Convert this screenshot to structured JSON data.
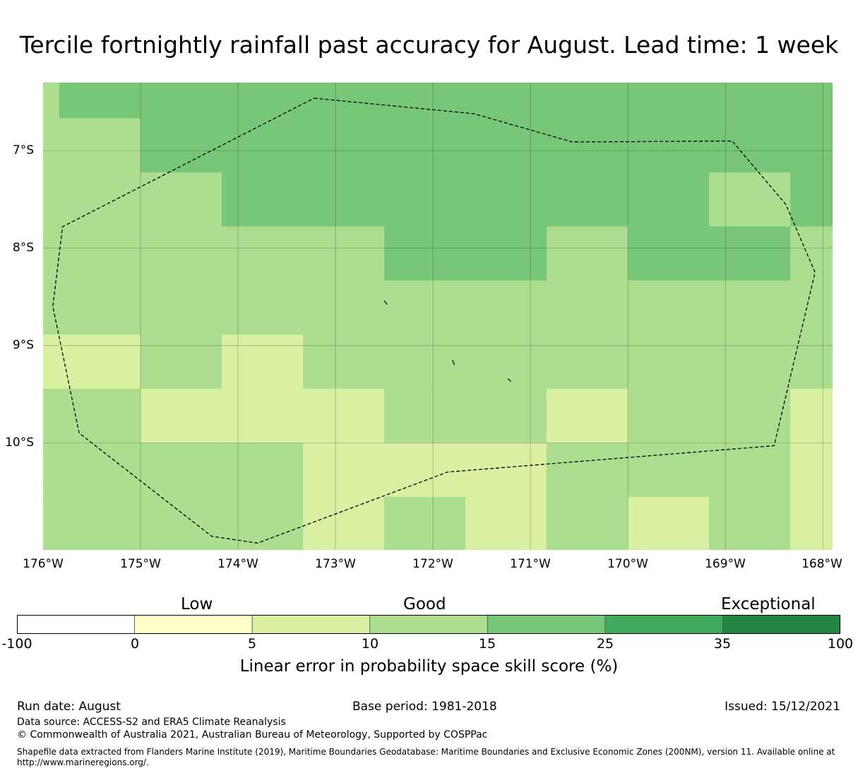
{
  "title": "Tercile fortnightly rainfall past accuracy for August. Lead time: 1 week",
  "map": {
    "lon_range": [
      -176,
      -167.9
    ],
    "lat_range": [
      -6.3,
      -11.1
    ],
    "grid_lon": [
      -175,
      -174,
      -173,
      -172,
      -171,
      -170,
      -169,
      -168
    ],
    "grid_lat": [
      -7,
      -8,
      -9,
      -10
    ],
    "lat_labels": [
      "7°S",
      "8°S",
      "9°S",
      "10°S"
    ],
    "lon_labels": [
      "176°W",
      "175°W",
      "174°W",
      "173°W",
      "172°W",
      "171°W",
      "170°W",
      "169°W",
      "168°W"
    ],
    "lon_edges": [
      -176,
      -175.833,
      -175,
      -174.167,
      -173.333,
      -172.5,
      -171.667,
      -170.833,
      -170,
      -169.167,
      -168.333,
      -167.9
    ],
    "lat_edges": [
      -6.3,
      -6.667,
      -7.222,
      -7.778,
      -8.333,
      -8.889,
      -9.444,
      -10,
      -10.556,
      -11.1
    ],
    "cells": [
      [
        3,
        4,
        4,
        4,
        4,
        4,
        4,
        4,
        4,
        4,
        4
      ],
      [
        3,
        3,
        4,
        4,
        4,
        4,
        4,
        4,
        4,
        4,
        4
      ],
      [
        3,
        3,
        3,
        4,
        4,
        4,
        4,
        4,
        4,
        3,
        4
      ],
      [
        3,
        3,
        3,
        3,
        3,
        4,
        4,
        3,
        4,
        4,
        3
      ],
      [
        3,
        3,
        3,
        3,
        3,
        3,
        3,
        3,
        3,
        3,
        3
      ],
      [
        2,
        2,
        3,
        2,
        3,
        3,
        3,
        3,
        3,
        3,
        3
      ],
      [
        3,
        3,
        2,
        2,
        2,
        3,
        3,
        2,
        3,
        3,
        2
      ],
      [
        3,
        3,
        3,
        3,
        2,
        2,
        2,
        3,
        3,
        3,
        2
      ],
      [
        3,
        3,
        3,
        3,
        2,
        3,
        2,
        3,
        2,
        3,
        2
      ]
    ],
    "boundary_lonlat": [
      [
        -173.22,
        -6.46
      ],
      [
        -171.58,
        -6.62
      ],
      [
        -170.57,
        -6.91
      ],
      [
        -168.93,
        -6.9
      ],
      [
        -168.38,
        -7.55
      ],
      [
        -168.08,
        -8.25
      ],
      [
        -168.5,
        -10.03
      ],
      [
        -171.85,
        -10.3
      ],
      [
        -173.8,
        -11.03
      ],
      [
        -174.27,
        -10.96
      ],
      [
        -175.63,
        -9.9
      ],
      [
        -175.9,
        -8.6
      ],
      [
        -175.8,
        -7.78
      ],
      [
        -173.22,
        -6.46
      ]
    ],
    "islands_lonlat": [
      [
        [
          -172.5,
          -8.54
        ],
        [
          -172.47,
          -8.58
        ]
      ],
      [
        [
          -171.8,
          -9.15
        ],
        [
          -171.78,
          -9.2
        ]
      ],
      [
        [
          -171.23,
          -9.34
        ],
        [
          -171.2,
          -9.37
        ]
      ]
    ]
  },
  "colorbar": {
    "colors": [
      "#ffffff",
      "#ffffcc",
      "#d9f0a3",
      "#addd8e",
      "#78c679",
      "#41ab5d",
      "#238443"
    ],
    "ticks": [
      "-100",
      "0",
      "5",
      "10",
      "15",
      "25",
      "35",
      "100"
    ],
    "categories": [
      "Low",
      "Good",
      "Exceptional"
    ],
    "label": "Linear error in probability space skill score (%)"
  },
  "footer": {
    "run_date": "Run date: August",
    "base_period": "Base period: 1981-2018",
    "issued": "Issued: 15/12/2021",
    "data_source": "Data source: ACCESS-S2 and ERA5 Climate Reanalysis",
    "copyright": "© Commonwealth of Australia 2021, Australian Bureau of Meteorology, Supported by COSPPac",
    "shapefile": "Shapefile data extracted from Flanders Marine Institute (2019), Maritime Boundaries Geodatabase: Maritime Boundaries and Exclusive Economic Zones (200NM), version 11. Available online at http://www.marineregions.org/."
  }
}
